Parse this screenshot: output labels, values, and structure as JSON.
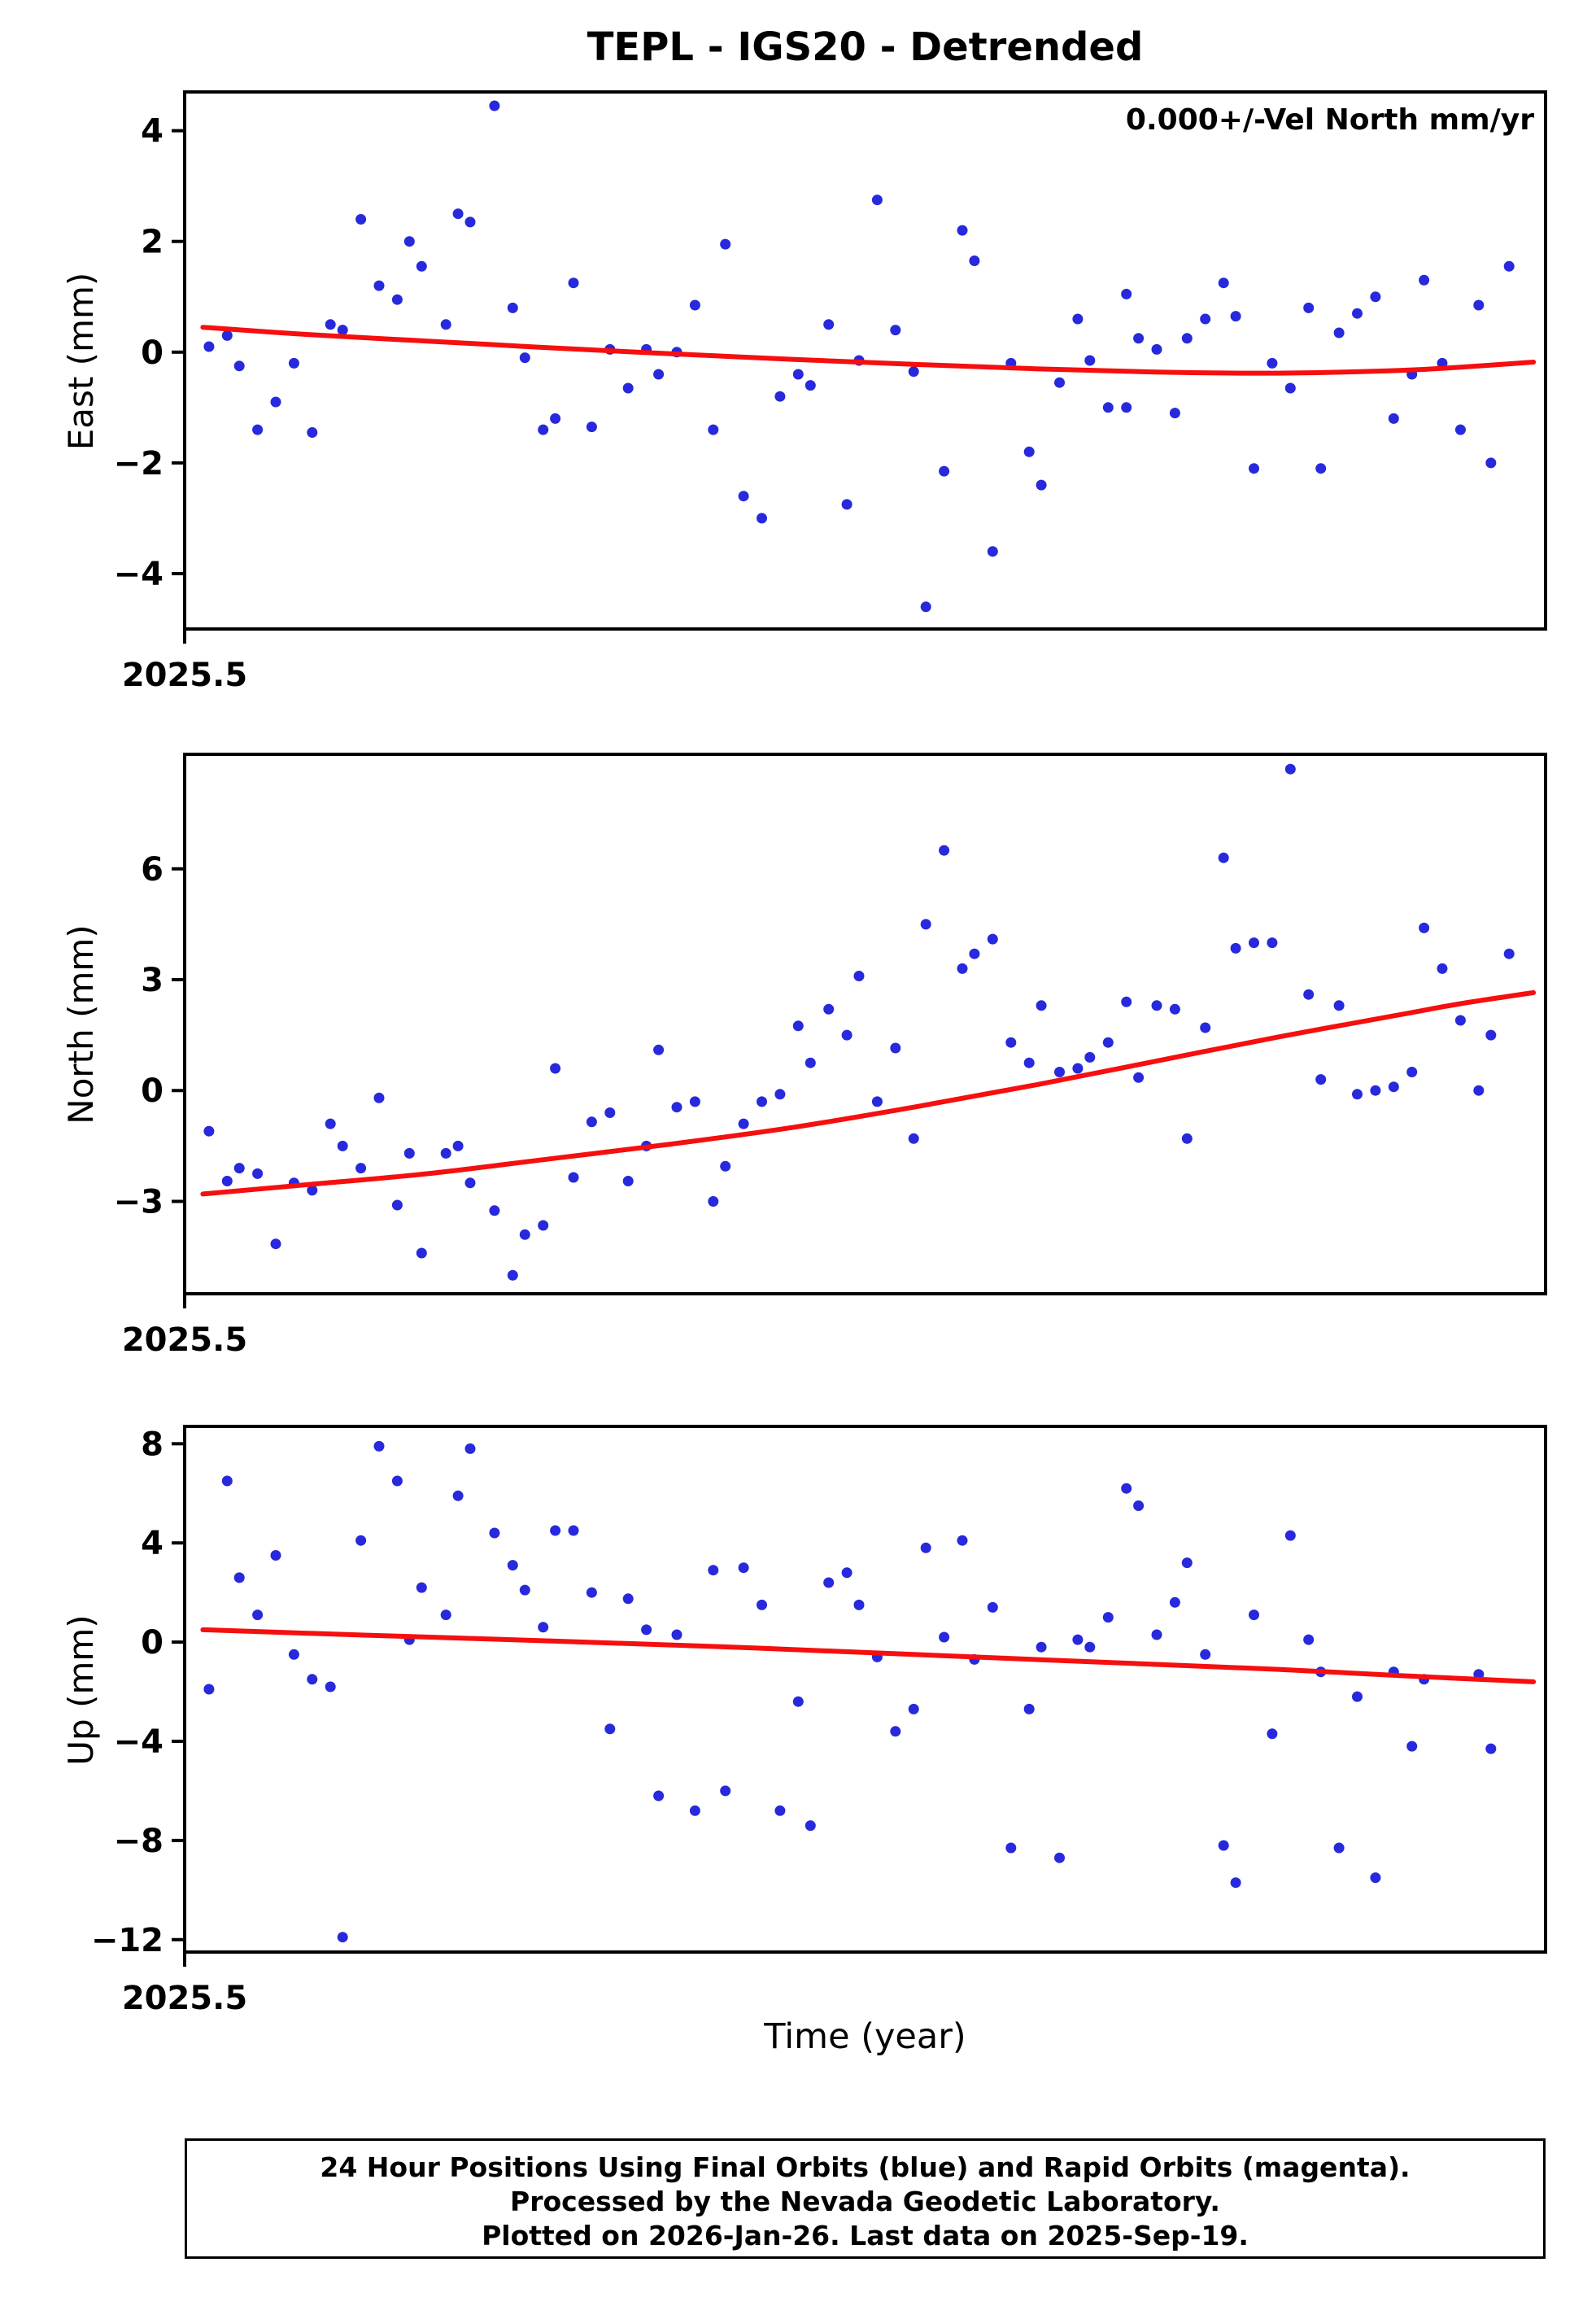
{
  "title": "TEPL - IGS20 - Detrended",
  "xlabel": "Time (year)",
  "footer": {
    "line1": "24 Hour Positions Using Final Orbits (blue) and Rapid Orbits (magenta).",
    "line2": "Processed by the Nevada Geodetic Laboratory.",
    "line3": "Plotted on 2026-Jan-26. Last data on 2025-Sep-19."
  },
  "colors": {
    "points": "#2828dc",
    "trend": "#f50f0f",
    "frame": "#000000"
  },
  "chart_data": [
    {
      "type": "scatter",
      "name": "east",
      "ylabel": "East (mm)",
      "annotation": "0.000+/-Vel North mm/yr",
      "xlim": [
        2025.5,
        2025.724
      ],
      "ylim": [
        -5.0,
        4.7
      ],
      "yticks": [
        4,
        2,
        0,
        -2,
        -4
      ],
      "xticks": [
        2025.5
      ],
      "xtick_labels": [
        "2025.5"
      ],
      "points": [
        [
          2025.504,
          0.1
        ],
        [
          2025.507,
          0.3
        ],
        [
          2025.509,
          -0.25
        ],
        [
          2025.512,
          -1.4
        ],
        [
          2025.515,
          -0.9
        ],
        [
          2025.518,
          -0.2
        ],
        [
          2025.521,
          -1.45
        ],
        [
          2025.524,
          0.5
        ],
        [
          2025.526,
          0.4
        ],
        [
          2025.529,
          2.4
        ],
        [
          2025.532,
          1.2
        ],
        [
          2025.535,
          0.95
        ],
        [
          2025.537,
          2.0
        ],
        [
          2025.539,
          1.55
        ],
        [
          2025.543,
          0.5
        ],
        [
          2025.545,
          2.5
        ],
        [
          2025.547,
          2.35
        ],
        [
          2025.551,
          4.45
        ],
        [
          2025.554,
          0.8
        ],
        [
          2025.556,
          -0.1
        ],
        [
          2025.559,
          -1.4
        ],
        [
          2025.561,
          -1.2
        ],
        [
          2025.564,
          1.25
        ],
        [
          2025.567,
          -1.35
        ],
        [
          2025.57,
          0.05
        ],
        [
          2025.573,
          -0.65
        ],
        [
          2025.576,
          0.05
        ],
        [
          2025.578,
          -0.4
        ],
        [
          2025.581,
          0.0
        ],
        [
          2025.584,
          0.85
        ],
        [
          2025.587,
          -1.4
        ],
        [
          2025.589,
          1.95
        ],
        [
          2025.592,
          -2.6
        ],
        [
          2025.595,
          -3.0
        ],
        [
          2025.598,
          -0.8
        ],
        [
          2025.601,
          -0.4
        ],
        [
          2025.603,
          -0.6
        ],
        [
          2025.606,
          0.5
        ],
        [
          2025.609,
          -2.75
        ],
        [
          2025.611,
          -0.15
        ],
        [
          2025.614,
          2.75
        ],
        [
          2025.617,
          0.4
        ],
        [
          2025.62,
          -0.35
        ],
        [
          2025.622,
          -4.6
        ],
        [
          2025.625,
          -2.15
        ],
        [
          2025.628,
          2.2
        ],
        [
          2025.63,
          1.65
        ],
        [
          2025.633,
          -3.6
        ],
        [
          2025.636,
          -0.2
        ],
        [
          2025.639,
          -1.8
        ],
        [
          2025.641,
          -2.4
        ],
        [
          2025.644,
          -0.55
        ],
        [
          2025.647,
          0.6
        ],
        [
          2025.649,
          -0.15
        ],
        [
          2025.652,
          -1.0
        ],
        [
          2025.655,
          1.05
        ],
        [
          2025.655,
          -1.0
        ],
        [
          2025.657,
          0.25
        ],
        [
          2025.66,
          0.05
        ],
        [
          2025.663,
          -1.1
        ],
        [
          2025.665,
          0.25
        ],
        [
          2025.668,
          0.6
        ],
        [
          2025.671,
          1.25
        ],
        [
          2025.673,
          0.65
        ],
        [
          2025.676,
          -2.1
        ],
        [
          2025.679,
          -0.2
        ],
        [
          2025.682,
          -0.65
        ],
        [
          2025.685,
          0.8
        ],
        [
          2025.687,
          -2.1
        ],
        [
          2025.69,
          0.35
        ],
        [
          2025.693,
          0.7
        ],
        [
          2025.696,
          1.0
        ],
        [
          2025.699,
          -1.2
        ],
        [
          2025.702,
          -0.4
        ],
        [
          2025.704,
          1.3
        ],
        [
          2025.707,
          -0.2
        ],
        [
          2025.71,
          -1.4
        ],
        [
          2025.713,
          0.85
        ],
        [
          2025.715,
          -2.0
        ],
        [
          2025.718,
          1.55
        ]
      ],
      "trend": [
        [
          2025.503,
          0.45
        ],
        [
          2025.52,
          0.32
        ],
        [
          2025.54,
          0.2
        ],
        [
          2025.56,
          0.08
        ],
        [
          2025.58,
          -0.03
        ],
        [
          2025.6,
          -0.13
        ],
        [
          2025.62,
          -0.22
        ],
        [
          2025.64,
          -0.3
        ],
        [
          2025.66,
          -0.36
        ],
        [
          2025.68,
          -0.38
        ],
        [
          2025.7,
          -0.33
        ],
        [
          2025.71,
          -0.27
        ],
        [
          2025.722,
          -0.18
        ]
      ]
    },
    {
      "type": "scatter",
      "name": "north",
      "ylabel": "North (mm)",
      "annotation": "",
      "xlim": [
        2025.5,
        2025.724
      ],
      "ylim": [
        -5.5,
        9.1
      ],
      "yticks": [
        6,
        3,
        0,
        -3
      ],
      "xticks": [
        2025.5
      ],
      "xtick_labels": [
        "2025.5"
      ],
      "points": [
        [
          2025.504,
          -1.1
        ],
        [
          2025.507,
          -2.45
        ],
        [
          2025.509,
          -2.1
        ],
        [
          2025.512,
          -2.25
        ],
        [
          2025.515,
          -4.15
        ],
        [
          2025.518,
          -2.5
        ],
        [
          2025.521,
          -2.7
        ],
        [
          2025.524,
          -0.9
        ],
        [
          2025.526,
          -1.5
        ],
        [
          2025.529,
          -2.1
        ],
        [
          2025.532,
          -0.2
        ],
        [
          2025.535,
          -3.1
        ],
        [
          2025.537,
          -1.7
        ],
        [
          2025.539,
          -4.4
        ],
        [
          2025.543,
          -1.7
        ],
        [
          2025.545,
          -1.5
        ],
        [
          2025.547,
          -2.5
        ],
        [
          2025.551,
          -3.25
        ],
        [
          2025.554,
          -5.0
        ],
        [
          2025.556,
          -3.9
        ],
        [
          2025.559,
          -3.65
        ],
        [
          2025.561,
          0.6
        ],
        [
          2025.564,
          -2.35
        ],
        [
          2025.567,
          -0.85
        ],
        [
          2025.57,
          -0.6
        ],
        [
          2025.573,
          -2.45
        ],
        [
          2025.576,
          -1.5
        ],
        [
          2025.578,
          1.1
        ],
        [
          2025.581,
          -0.45
        ],
        [
          2025.584,
          -0.3
        ],
        [
          2025.587,
          -3.0
        ],
        [
          2025.589,
          -2.05
        ],
        [
          2025.592,
          -0.9
        ],
        [
          2025.595,
          -0.3
        ],
        [
          2025.598,
          -0.1
        ],
        [
          2025.601,
          1.75
        ],
        [
          2025.603,
          0.75
        ],
        [
          2025.606,
          2.2
        ],
        [
          2025.609,
          1.5
        ],
        [
          2025.611,
          3.1
        ],
        [
          2025.614,
          -0.3
        ],
        [
          2025.617,
          1.15
        ],
        [
          2025.62,
          -1.3
        ],
        [
          2025.622,
          4.5
        ],
        [
          2025.625,
          6.5
        ],
        [
          2025.628,
          3.3
        ],
        [
          2025.63,
          3.7
        ],
        [
          2025.633,
          4.1
        ],
        [
          2025.636,
          1.3
        ],
        [
          2025.639,
          0.75
        ],
        [
          2025.641,
          2.3
        ],
        [
          2025.644,
          0.5
        ],
        [
          2025.647,
          0.6
        ],
        [
          2025.649,
          0.9
        ],
        [
          2025.652,
          1.3
        ],
        [
          2025.655,
          2.4
        ],
        [
          2025.657,
          0.35
        ],
        [
          2025.66,
          2.3
        ],
        [
          2025.663,
          2.2
        ],
        [
          2025.665,
          -1.3
        ],
        [
          2025.668,
          1.7
        ],
        [
          2025.671,
          6.3
        ],
        [
          2025.673,
          3.85
        ],
        [
          2025.676,
          4.0
        ],
        [
          2025.679,
          4.0
        ],
        [
          2025.682,
          8.7
        ],
        [
          2025.685,
          2.6
        ],
        [
          2025.687,
          0.3
        ],
        [
          2025.69,
          2.3
        ],
        [
          2025.693,
          -0.1
        ],
        [
          2025.696,
          0.0
        ],
        [
          2025.699,
          0.1
        ],
        [
          2025.702,
          0.5
        ],
        [
          2025.704,
          4.4
        ],
        [
          2025.707,
          3.3
        ],
        [
          2025.71,
          1.9
        ],
        [
          2025.713,
          0.0
        ],
        [
          2025.715,
          1.5
        ],
        [
          2025.718,
          3.7
        ]
      ],
      "trend": [
        [
          2025.503,
          -2.8
        ],
        [
          2025.52,
          -2.55
        ],
        [
          2025.54,
          -2.25
        ],
        [
          2025.56,
          -1.85
        ],
        [
          2025.58,
          -1.45
        ],
        [
          2025.6,
          -1.0
        ],
        [
          2025.62,
          -0.45
        ],
        [
          2025.64,
          0.15
        ],
        [
          2025.66,
          0.8
        ],
        [
          2025.68,
          1.45
        ],
        [
          2025.7,
          2.05
        ],
        [
          2025.71,
          2.35
        ],
        [
          2025.722,
          2.65
        ]
      ]
    },
    {
      "type": "scatter",
      "name": "up",
      "ylabel": "Up (mm)",
      "annotation": "",
      "xlim": [
        2025.5,
        2025.724
      ],
      "ylim": [
        -12.5,
        8.7
      ],
      "yticks": [
        8,
        4,
        0,
        -4,
        -8,
        -12
      ],
      "xticks": [
        2025.5
      ],
      "xtick_labels": [
        "2025.5"
      ],
      "points": [
        [
          2025.504,
          -1.9
        ],
        [
          2025.507,
          6.5
        ],
        [
          2025.509,
          2.6
        ],
        [
          2025.512,
          1.1
        ],
        [
          2025.515,
          3.5
        ],
        [
          2025.518,
          -0.5
        ],
        [
          2025.521,
          -1.5
        ],
        [
          2025.524,
          -1.8
        ],
        [
          2025.526,
          -11.9
        ],
        [
          2025.529,
          4.1
        ],
        [
          2025.532,
          7.9
        ],
        [
          2025.535,
          6.5
        ],
        [
          2025.537,
          0.1
        ],
        [
          2025.539,
          2.2
        ],
        [
          2025.543,
          1.1
        ],
        [
          2025.545,
          5.9
        ],
        [
          2025.547,
          7.8
        ],
        [
          2025.551,
          4.4
        ],
        [
          2025.554,
          3.1
        ],
        [
          2025.556,
          2.1
        ],
        [
          2025.559,
          0.6
        ],
        [
          2025.561,
          4.5
        ],
        [
          2025.564,
          4.5
        ],
        [
          2025.567,
          2.0
        ],
        [
          2025.57,
          -3.5
        ],
        [
          2025.573,
          1.75
        ],
        [
          2025.576,
          0.5
        ],
        [
          2025.578,
          -6.2
        ],
        [
          2025.581,
          0.3
        ],
        [
          2025.584,
          -6.8
        ],
        [
          2025.587,
          2.9
        ],
        [
          2025.589,
          -6.0
        ],
        [
          2025.592,
          3.0
        ],
        [
          2025.595,
          1.5
        ],
        [
          2025.598,
          -6.8
        ],
        [
          2025.601,
          -2.4
        ],
        [
          2025.603,
          -7.4
        ],
        [
          2025.606,
          2.4
        ],
        [
          2025.609,
          2.8
        ],
        [
          2025.611,
          1.5
        ],
        [
          2025.614,
          -0.6
        ],
        [
          2025.617,
          -3.6
        ],
        [
          2025.62,
          -2.7
        ],
        [
          2025.622,
          3.8
        ],
        [
          2025.625,
          0.2
        ],
        [
          2025.628,
          4.1
        ],
        [
          2025.63,
          -0.7
        ],
        [
          2025.633,
          1.4
        ],
        [
          2025.636,
          -8.3
        ],
        [
          2025.639,
          -2.7
        ],
        [
          2025.641,
          -0.2
        ],
        [
          2025.644,
          -8.7
        ],
        [
          2025.647,
          0.1
        ],
        [
          2025.649,
          -0.2
        ],
        [
          2025.652,
          1.0
        ],
        [
          2025.655,
          6.2
        ],
        [
          2025.657,
          5.5
        ],
        [
          2025.66,
          0.3
        ],
        [
          2025.663,
          1.6
        ],
        [
          2025.665,
          3.2
        ],
        [
          2025.668,
          -0.5
        ],
        [
          2025.671,
          -8.2
        ],
        [
          2025.673,
          -9.7
        ],
        [
          2025.676,
          1.1
        ],
        [
          2025.679,
          -3.7
        ],
        [
          2025.682,
          4.3
        ],
        [
          2025.685,
          0.1
        ],
        [
          2025.687,
          -1.2
        ],
        [
          2025.69,
          -8.3
        ],
        [
          2025.693,
          -2.2
        ],
        [
          2025.696,
          -9.5
        ],
        [
          2025.699,
          -1.2
        ],
        [
          2025.702,
          -4.2
        ],
        [
          2025.704,
          -1.5
        ],
        [
          2025.713,
          -1.3
        ],
        [
          2025.715,
          -4.3
        ]
      ],
      "trend": [
        [
          2025.503,
          0.5
        ],
        [
          2025.53,
          0.28
        ],
        [
          2025.56,
          0.05
        ],
        [
          2025.59,
          -0.2
        ],
        [
          2025.62,
          -0.5
        ],
        [
          2025.65,
          -0.8
        ],
        [
          2025.68,
          -1.1
        ],
        [
          2025.7,
          -1.35
        ],
        [
          2025.722,
          -1.6
        ]
      ]
    }
  ]
}
